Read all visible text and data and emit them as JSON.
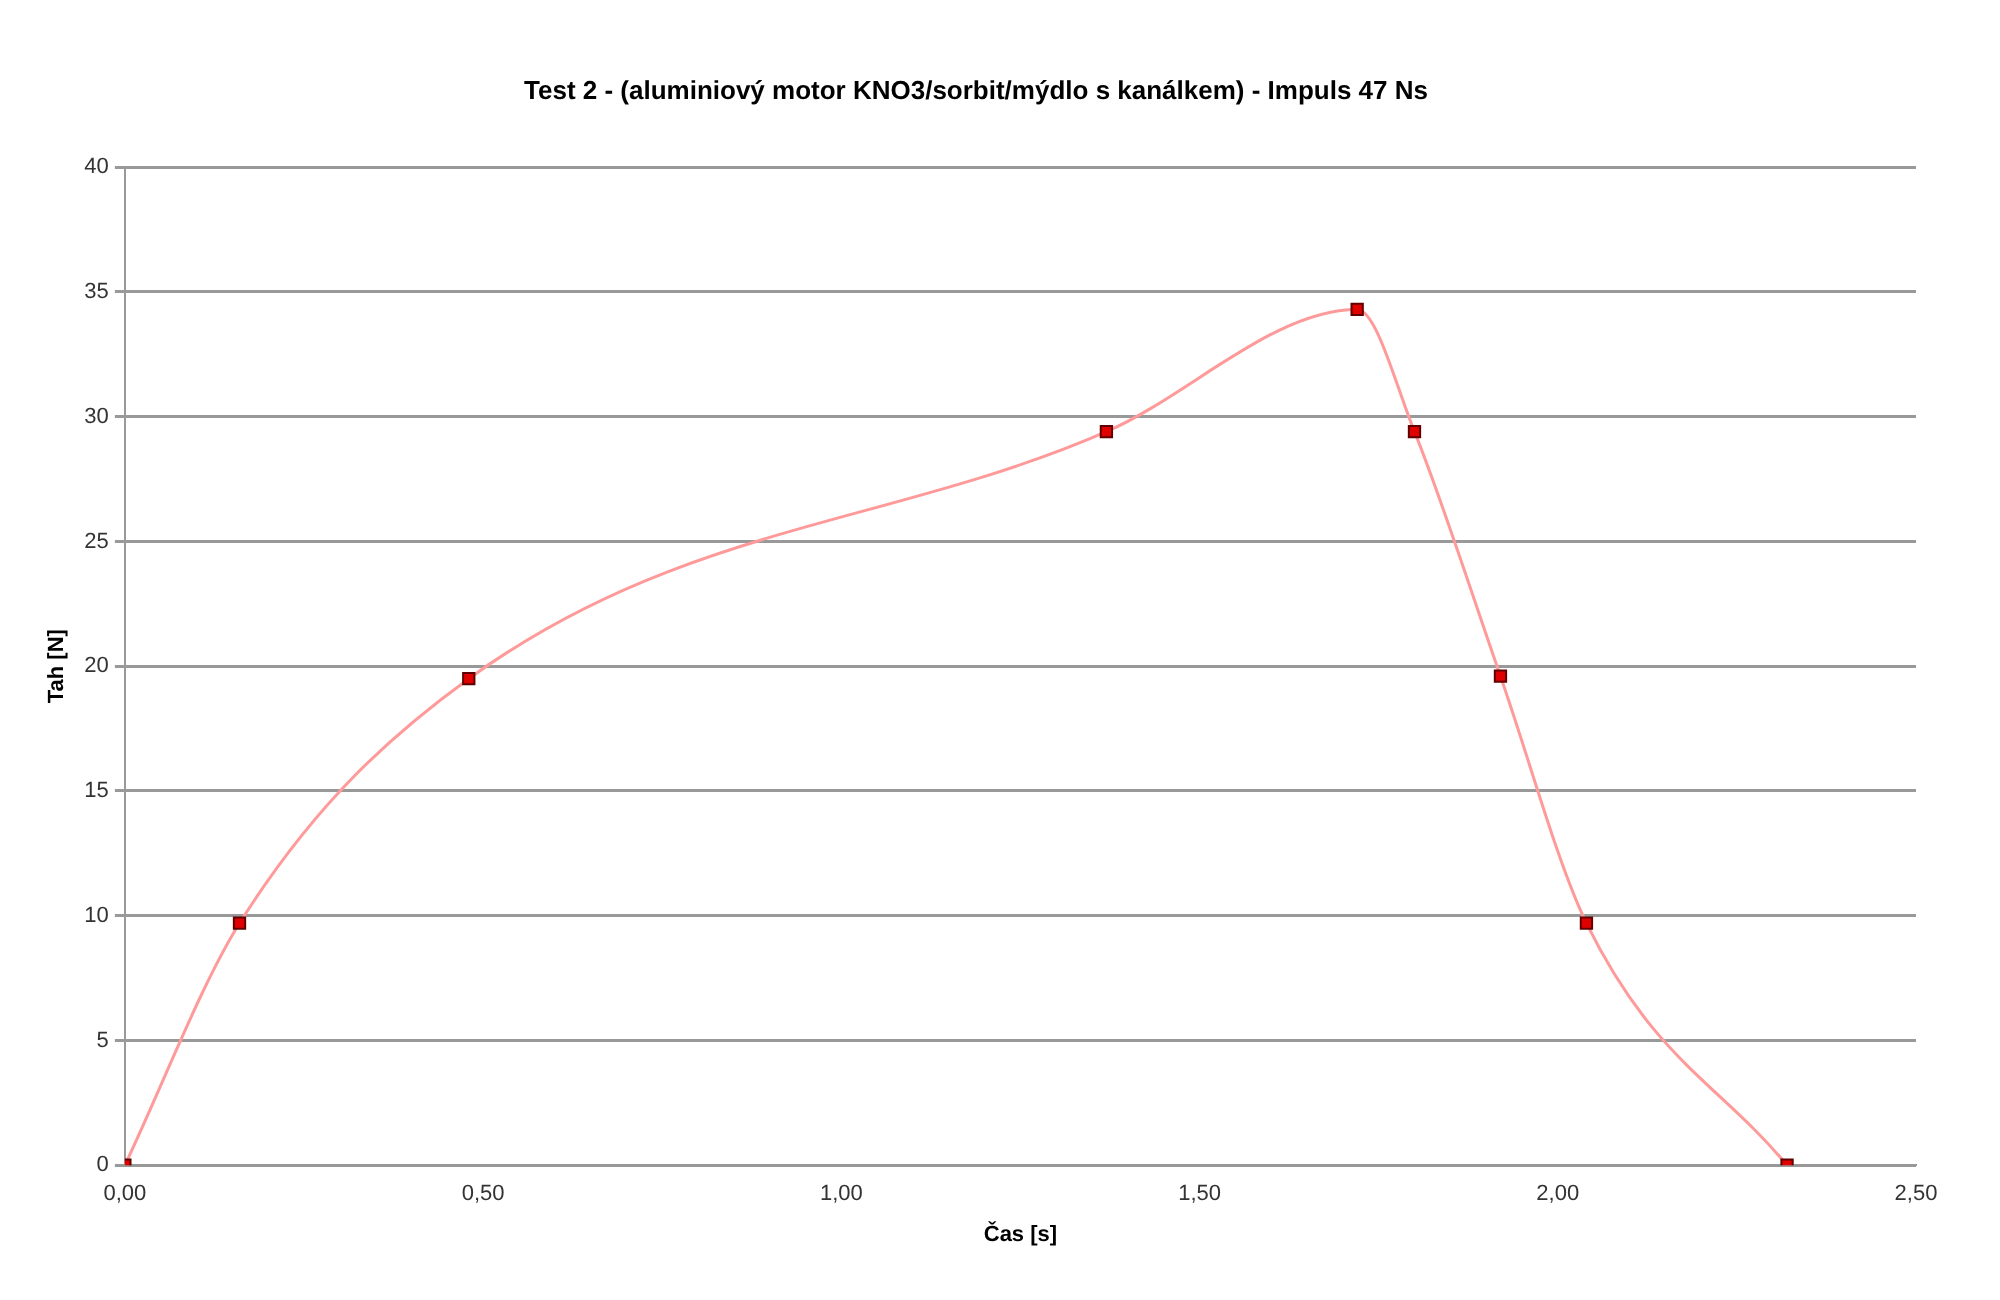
{
  "chart_data": {
    "type": "line",
    "title": "Test 2 - (aluminiový motor KNO3/sorbit/mýdlo s kanálkem) - Impuls 47 Ns",
    "xlabel": "Čas [s]",
    "ylabel": "Tah [N]",
    "x": [
      0,
      0.16,
      0.48,
      1.37,
      1.72,
      1.8,
      1.92,
      2.04,
      2.32
    ],
    "series": [
      {
        "color": "#ff9a9a",
        "values": [
          0,
          9.7,
          19.5,
          29.4,
          34.3,
          29.4,
          19.6,
          9.7,
          0
        ]
      }
    ],
    "marker": "square",
    "xlim": [
      0,
      2.5
    ],
    "xticks": [
      {
        "value": 0,
        "label": "0,00"
      },
      {
        "value": 0.5,
        "label": "0,50"
      },
      {
        "value": 1,
        "label": "1,00"
      },
      {
        "value": 1.5,
        "label": "1,50"
      },
      {
        "value": 2,
        "label": "2,00"
      },
      {
        "value": 2.5,
        "label": "2,50"
      }
    ],
    "ylim": [
      0,
      40
    ],
    "yticks": [
      0,
      5,
      10,
      15,
      20,
      25,
      30,
      35,
      40
    ],
    "grid": "y",
    "legend": false
  }
}
